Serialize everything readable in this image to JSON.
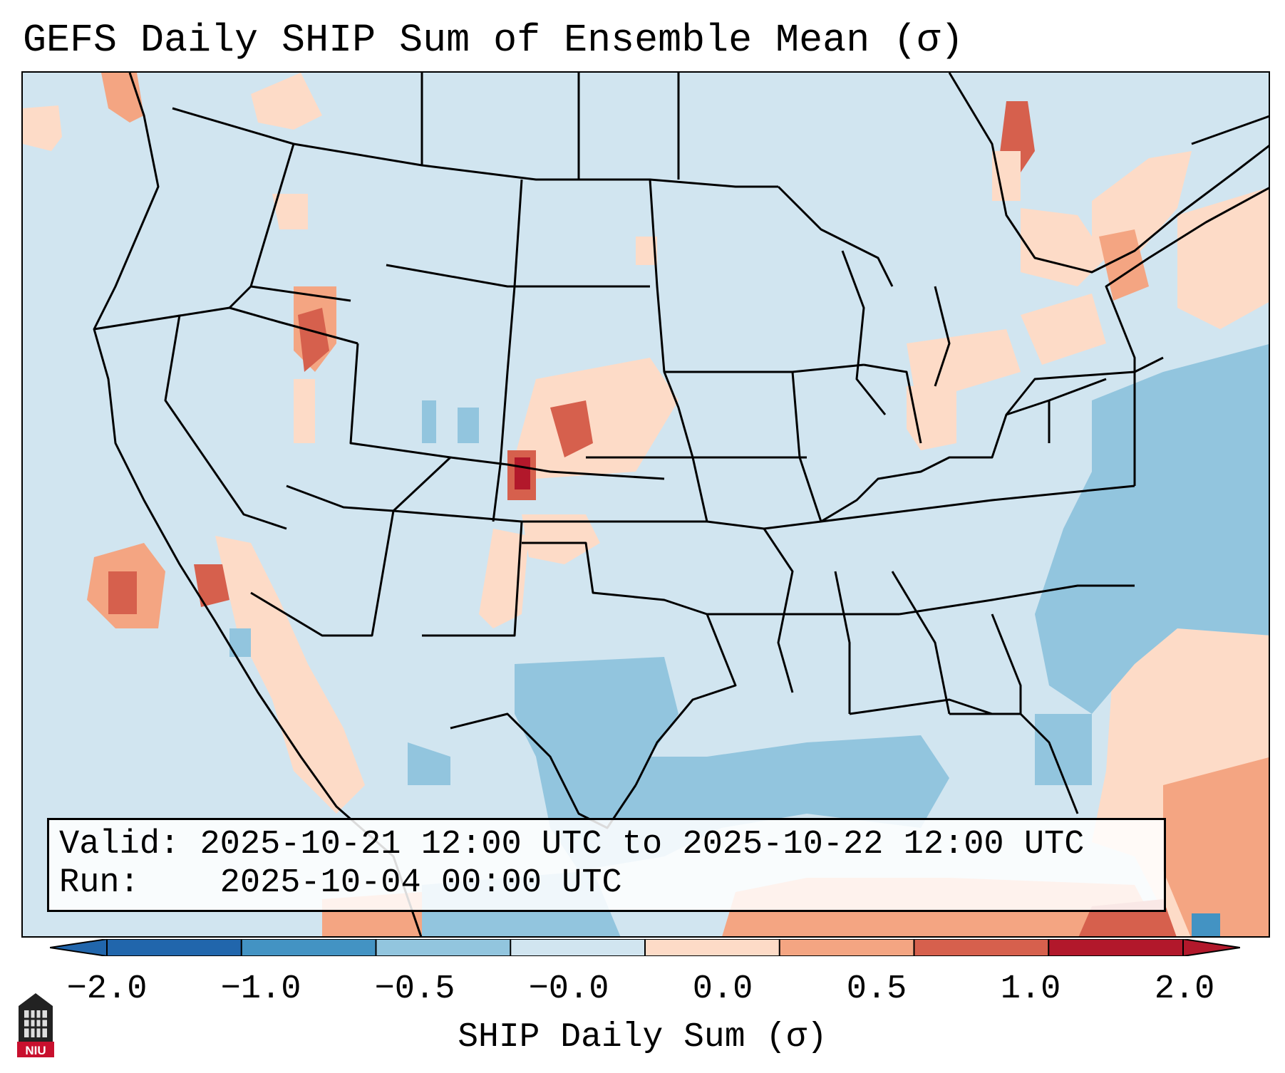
{
  "title": "GEFS Daily SHIP Sum of Ensemble Mean (σ)",
  "info": {
    "valid_label": "Valid:",
    "valid_value": "2025-10-21 12:00 UTC to 2025-10-22 12:00 UTC",
    "run_label": "Run:",
    "run_value": "2025-10-04 00:00 UTC"
  },
  "colorbar": {
    "label": "SHIP Daily Sum (σ)",
    "ticks": [
      "−2.0",
      "−1.0",
      "−0.5",
      "−0.0",
      "0.0",
      "0.5",
      "1.0",
      "2.0"
    ],
    "colors": [
      "#2166ac",
      "#4393c3",
      "#92c5de",
      "#d1e5f0",
      "#fddbc7",
      "#f4a582",
      "#d6604d",
      "#b2182b"
    ],
    "extend": "both"
  },
  "logo": {
    "text": "NIU"
  },
  "palette": {
    "background": "#d1e5f0",
    "boundary": "#000000"
  }
}
